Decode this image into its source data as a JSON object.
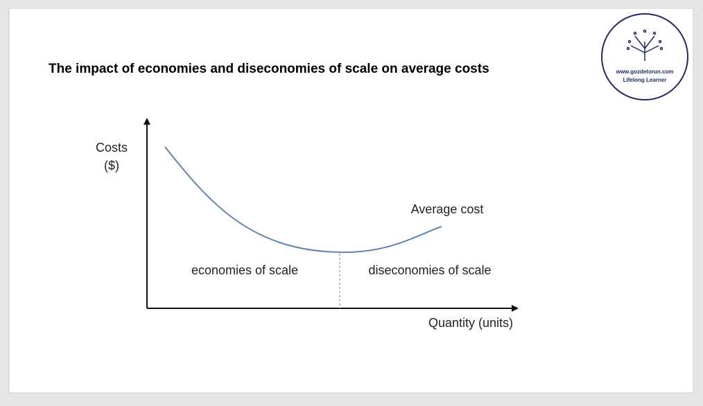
{
  "title": "The impact of economies and diseconomies of scale on average costs",
  "logo": {
    "url": "www.gozdetorun.com",
    "tagline": "Lifelong Learner"
  },
  "diagram": {
    "y_axis_label": [
      "Costs",
      "($)"
    ],
    "x_axis_label": "Quantity (units)",
    "curve_label": "Average cost",
    "regions": [
      "economies of scale",
      "diseconomies of scale"
    ]
  }
}
